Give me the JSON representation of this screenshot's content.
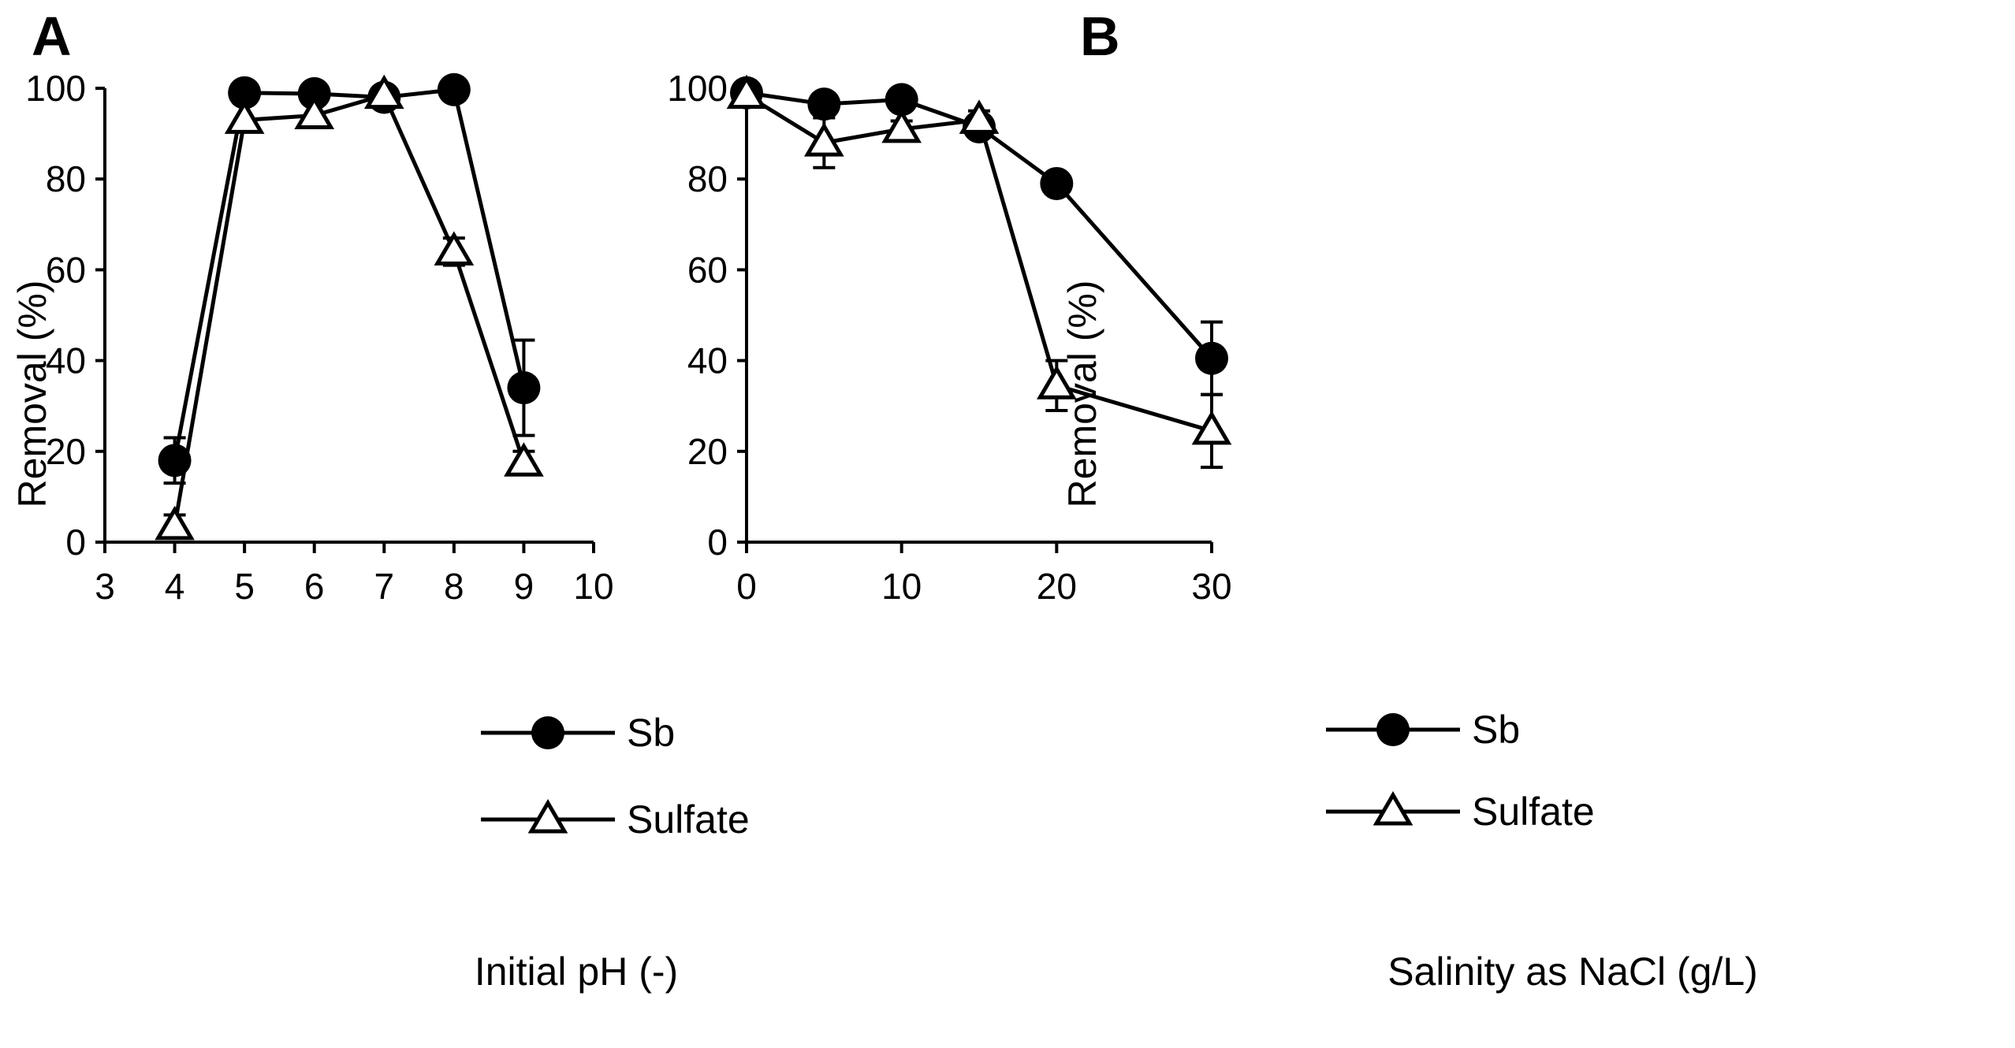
{
  "chart_data": [
    {
      "type": "line",
      "panel": "A",
      "xlabel": "Initial pH (-)",
      "ylabel": "Removal  (%)",
      "xlim": [
        3,
        10
      ],
      "ylim": [
        0,
        100
      ],
      "xticks": [
        3,
        4,
        5,
        6,
        7,
        8,
        9,
        10
      ],
      "yticks": [
        0,
        20,
        40,
        60,
        80,
        100
      ],
      "legend_position": "bottom-right",
      "series": [
        {
          "name": "Sb",
          "marker": "filled-circle",
          "x": [
            4,
            5,
            6,
            7,
            8,
            9
          ],
          "y": [
            18,
            99,
            98.8,
            98,
            99.7,
            34
          ],
          "err": [
            5,
            0,
            0,
            0,
            0,
            10.5
          ]
        },
        {
          "name": "Sulfate",
          "marker": "open-triangle",
          "x": [
            4,
            5,
            6,
            7,
            8,
            9
          ],
          "y": [
            3.5,
            93,
            94,
            98.5,
            64,
            17.5
          ],
          "err": [
            2.5,
            0,
            0,
            0,
            3,
            2.5
          ]
        }
      ]
    },
    {
      "type": "line",
      "panel": "B",
      "xlabel": "Salinity as NaCl (g/L)",
      "ylabel": "Removal (%)",
      "xlim": [
        0,
        30
      ],
      "ylim": [
        0,
        100
      ],
      "xticks": [
        0,
        10,
        20,
        30
      ],
      "yticks": [
        0,
        20,
        40,
        60,
        80,
        100
      ],
      "legend_position": "bottom-left",
      "series": [
        {
          "name": "Sb",
          "marker": "filled-circle",
          "x": [
            0,
            5,
            10,
            15,
            20,
            30
          ],
          "y": [
            99,
            96.5,
            97.5,
            91.5,
            79,
            40.5
          ],
          "err": [
            0,
            0,
            0,
            0,
            0,
            8
          ]
        },
        {
          "name": "Sulfate",
          "marker": "open-triangle",
          "x": [
            0,
            5,
            10,
            15,
            20,
            30
          ],
          "y": [
            98.5,
            88,
            91,
            93,
            34.5,
            24.5
          ],
          "err": [
            0,
            5.5,
            1.8,
            2,
            5.5,
            8
          ]
        }
      ]
    }
  ]
}
